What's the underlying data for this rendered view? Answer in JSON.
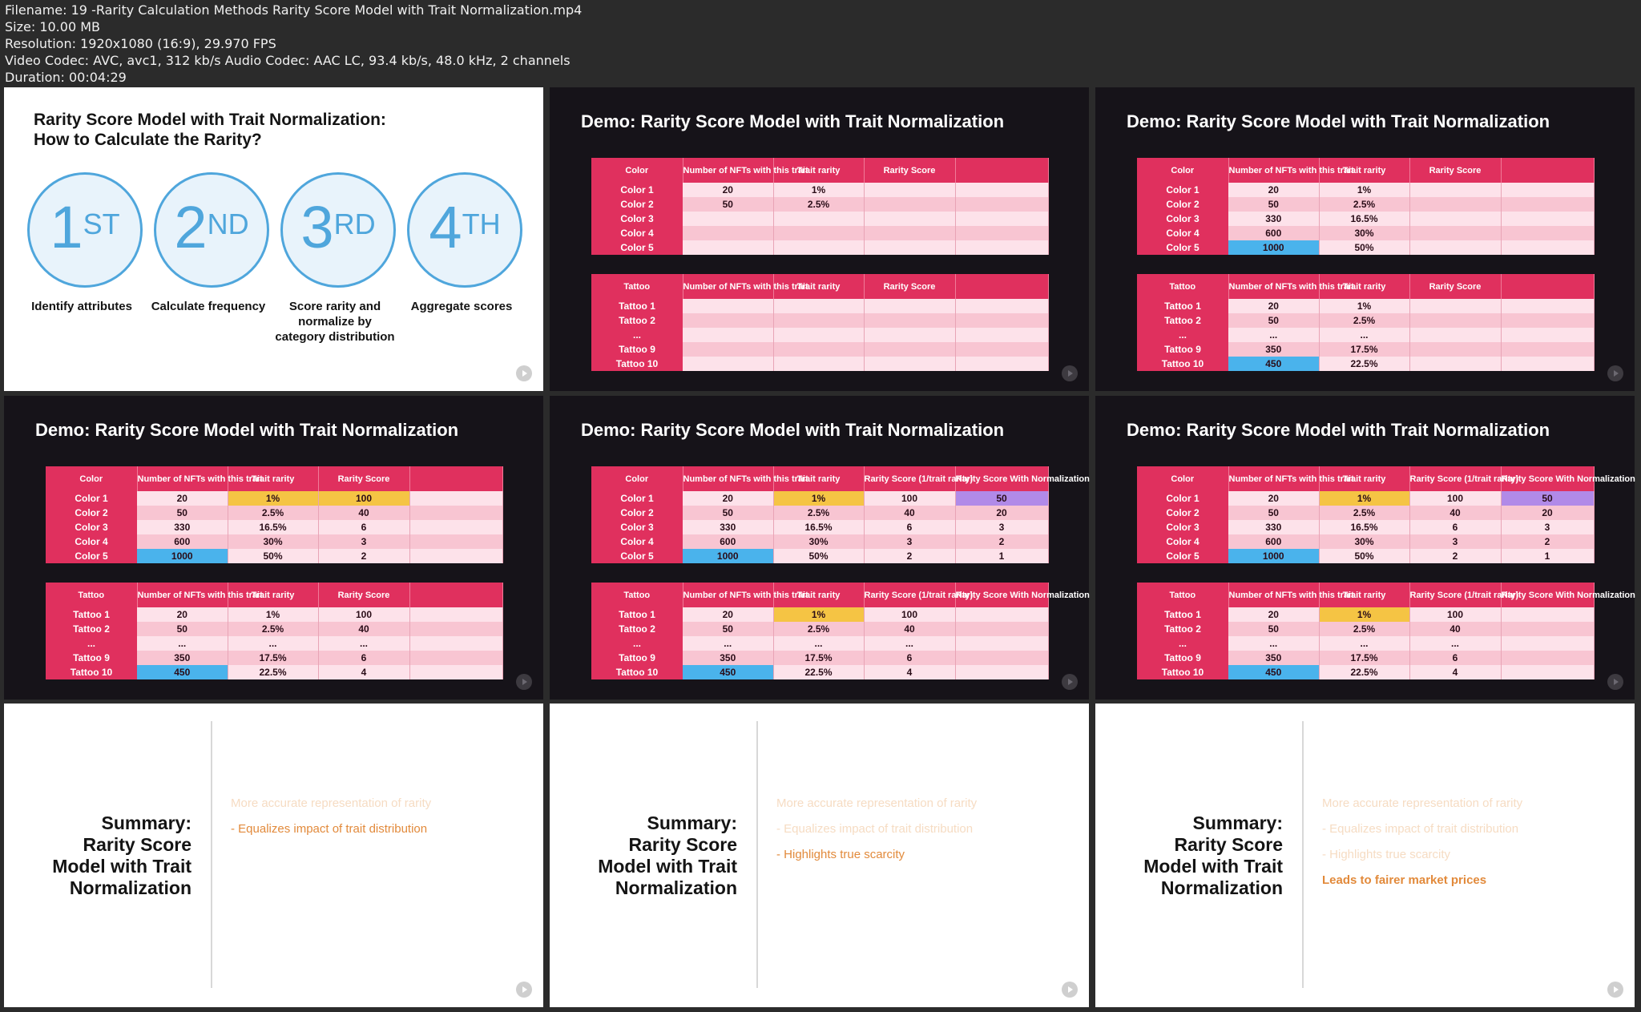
{
  "meta": {
    "filename": "Filename: 19 -Rarity Calculation Methods Rarity Score Model with Trait Normalization.mp4",
    "size": "Size: 10.00 MB",
    "resolution": "Resolution: 1920x1080 (16:9), 29.970 FPS",
    "codec": "Video Codec: AVC, avc1, 312 kb/s Audio Codec: AAC LC, 93.4 kb/s, 48.0 kHz, 2 channels",
    "duration": "Duration: 00:04:29"
  },
  "steps_slide": {
    "title_line1": "Rarity Score Model with Trait Normalization:",
    "title_line2": "How to Calculate the Rarity?",
    "steps": [
      {
        "num": "1",
        "suffix": "ST",
        "label": "Identify attributes"
      },
      {
        "num": "2",
        "suffix": "ND",
        "label": "Calculate frequency"
      },
      {
        "num": "3",
        "suffix": "RD",
        "label": "Score rarity and normalize by category distribution"
      },
      {
        "num": "4",
        "suffix": "TH",
        "label": "Aggregate scores"
      }
    ]
  },
  "demo_title": "Demo: Rarity Score Model with Trait Normalization",
  "headers": {
    "color": "Color",
    "tattoo": "Tattoo",
    "nfts": "Number of NFTs with this trait",
    "trait_rarity": "Trait rarity",
    "rarity_score": "Rarity Score",
    "rarity_score_inv": "Rarity Score (1/trait rarity)",
    "rarity_norm": "Rarity Score With Normalization"
  },
  "labels": {
    "color_rows": [
      "Color 1",
      "Color 2",
      "Color 3",
      "Color 4",
      "Color 5"
    ],
    "tattoo_rows": [
      "Tattoo 1",
      "Tattoo 2",
      "...",
      "Tattoo 9",
      "Tattoo 10"
    ]
  },
  "values": {
    "color_nfts": [
      "20",
      "50",
      "330",
      "600",
      "1000"
    ],
    "color_rarity": [
      "1%",
      "2.5%",
      "16.5%",
      "30%",
      "50%"
    ],
    "color_score": [
      "100",
      "40",
      "6",
      "3",
      "2"
    ],
    "color_norm": [
      "50",
      "20",
      "3",
      "2",
      "1"
    ],
    "tattoo_nfts": [
      "20",
      "50",
      "...",
      "350",
      "450"
    ],
    "tattoo_rarity": [
      "1%",
      "2.5%",
      "...",
      "17.5%",
      "22.5%"
    ],
    "tattoo_score": [
      "100",
      "40",
      "...",
      "6",
      "4"
    ]
  },
  "summary": {
    "title_lines": [
      "Summary:",
      "Rarity Score",
      "Model with Trait",
      "Normalization"
    ],
    "points": [
      "More accurate representation of rarity",
      "- Equalizes impact of trait distribution",
      "- Highlights true scarcity",
      "Leads to fairer market prices"
    ]
  },
  "colors": {
    "header_pink": "#e0305e",
    "row_light": "#fde2ea",
    "row_mid": "#f8c5d2",
    "highlight_yellow": "#f5c444",
    "highlight_blue": "#4ab3ec",
    "highlight_purple": "#b18ae8",
    "step_blue": "#4fa6dc",
    "summary_orange": "#e28a3b"
  }
}
